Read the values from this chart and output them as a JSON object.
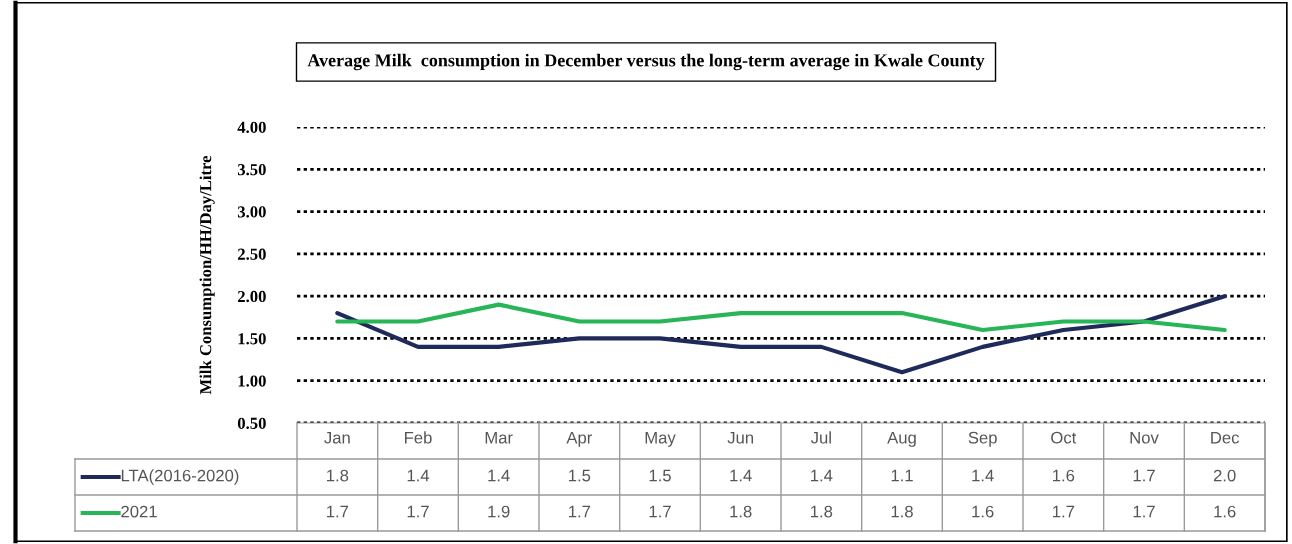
{
  "chart_data": {
    "type": "line",
    "title": "Average Milk  consumption in December versus the long-term average in Kwale County",
    "ylabel": "Milk Consumption/HH/Day/Litre",
    "categories": [
      "Jan",
      "Feb",
      "Mar",
      "Apr",
      "May",
      "Jun",
      "Jul",
      "Aug",
      "Sep",
      "Oct",
      "Nov",
      "Dec"
    ],
    "series": [
      {
        "name": "LTA(2016-2020)",
        "color": "#1f2a5a",
        "values": [
          1.8,
          1.4,
          1.4,
          1.5,
          1.5,
          1.4,
          1.4,
          1.1,
          1.4,
          1.6,
          1.7,
          2.0
        ],
        "value_labels": [
          "1.8",
          "1.4",
          "1.4",
          "1.5",
          "1.5",
          "1.4",
          "1.4",
          "1.1",
          "1.4",
          "1.6",
          "1.7",
          "2.0"
        ]
      },
      {
        "name": "2021",
        "color": "#27b557",
        "values": [
          1.7,
          1.7,
          1.9,
          1.7,
          1.7,
          1.8,
          1.8,
          1.8,
          1.6,
          1.7,
          1.7,
          1.6
        ],
        "value_labels": [
          "1.7",
          "1.7",
          "1.9",
          "1.7",
          "1.7",
          "1.8",
          "1.8",
          "1.8",
          "1.6",
          "1.7",
          "1.7",
          "1.6"
        ]
      }
    ],
    "ylim": [
      0.5,
      4.0
    ],
    "yticks": [
      {
        "value": 0.5,
        "label": "0.50"
      },
      {
        "value": 1.0,
        "label": "1.00"
      },
      {
        "value": 1.5,
        "label": "1.50"
      },
      {
        "value": 2.0,
        "label": "2.00"
      },
      {
        "value": 2.5,
        "label": "2.50"
      },
      {
        "value": 3.0,
        "label": "3.00"
      },
      {
        "value": 3.5,
        "label": "3.50"
      },
      {
        "value": 4.0,
        "label": "4.00"
      }
    ],
    "grid": "y",
    "line_style": "solid",
    "marker": "none",
    "legend": "bottom"
  }
}
